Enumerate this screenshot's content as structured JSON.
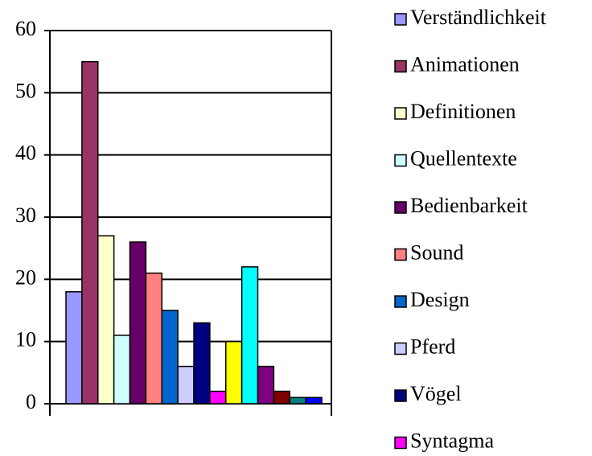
{
  "chart_data": {
    "type": "bar",
    "series": [
      {
        "name": "Verständlichkeit",
        "color": "#9999ff",
        "values": [
          18
        ]
      },
      {
        "name": "Animationen",
        "color": "#993366",
        "values": [
          55
        ]
      },
      {
        "name": "Definitionen",
        "color": "#ffffcc",
        "values": [
          27
        ]
      },
      {
        "name": "Quellentexte",
        "color": "#ccffff",
        "values": [
          11
        ]
      },
      {
        "name": "Bedienbarkeit",
        "color": "#660066",
        "values": [
          26
        ]
      },
      {
        "name": "Sound",
        "color": "#ff8080",
        "values": [
          21
        ]
      },
      {
        "name": "Design",
        "color": "#0066cc",
        "values": [
          15
        ]
      },
      {
        "name": "Pferd",
        "color": "#ccccff",
        "values": [
          6
        ]
      },
      {
        "name": "Vögel",
        "color": "#000080",
        "values": [
          13
        ]
      },
      {
        "name": "Syntagma",
        "color": "#ff00ff",
        "values": [
          2
        ]
      },
      {
        "name": null,
        "color": "#ffff00",
        "values": [
          10
        ]
      },
      {
        "name": null,
        "color": "#00ffff",
        "values": [
          22
        ]
      },
      {
        "name": null,
        "color": "#800080",
        "values": [
          6
        ]
      },
      {
        "name": null,
        "color": "#800000",
        "values": [
          2
        ]
      },
      {
        "name": null,
        "color": "#008080",
        "values": [
          1
        ]
      },
      {
        "name": null,
        "color": "#0000ff",
        "values": [
          1
        ]
      }
    ],
    "ylim": [
      0,
      60
    ],
    "yticks": [
      0,
      10,
      20,
      30,
      40,
      50,
      60
    ],
    "grid": true,
    "legend": "right"
  }
}
